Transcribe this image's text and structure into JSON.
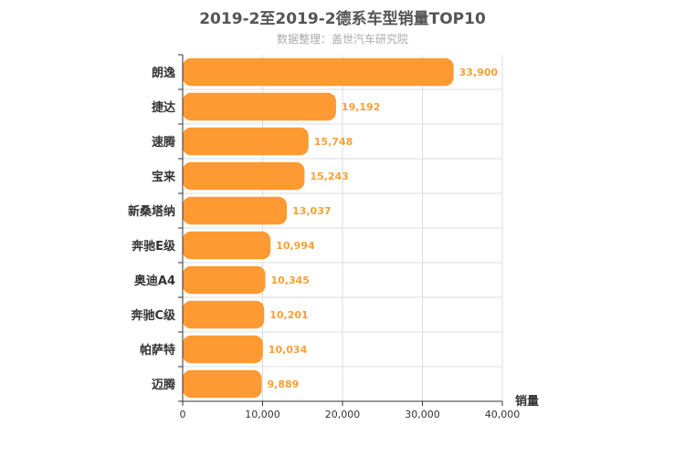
{
  "title": "2019-2至2019-2德系车型销量TOP10",
  "subtitle": "数据整理：盖世汽车研究院",
  "colors": {
    "bar": "#ff9a33",
    "grid": "#dddddd",
    "axis": "#333333",
    "data_label": "#f7a035"
  },
  "chart_data": {
    "type": "bar",
    "orientation": "horizontal",
    "title": "2019-2至2019-2德系车型销量TOP10",
    "subtitle": "数据整理：盖世汽车研究院",
    "categories": [
      "朗逸",
      "捷达",
      "速腾",
      "宝来",
      "新桑塔纳",
      "奔驰E级",
      "奥迪A4",
      "奔驰C级",
      "帕萨特",
      "迈腾"
    ],
    "values": [
      33900,
      19192,
      15748,
      15243,
      13037,
      10994,
      10345,
      10201,
      10034,
      9889
    ],
    "value_labels": [
      "33,900",
      "19,192",
      "15,748",
      "15,243",
      "13,037",
      "10,994",
      "10,345",
      "10,201",
      "10,034",
      "9,889"
    ],
    "xlabel": "销量",
    "ylabel": "",
    "xlim": [
      0,
      40000
    ],
    "x_ticks": [
      0,
      10000,
      20000,
      30000,
      40000
    ],
    "x_tick_labels": [
      "0",
      "10,000",
      "20,000",
      "30,000",
      "40,000"
    ],
    "grid": true,
    "legend": "none"
  }
}
